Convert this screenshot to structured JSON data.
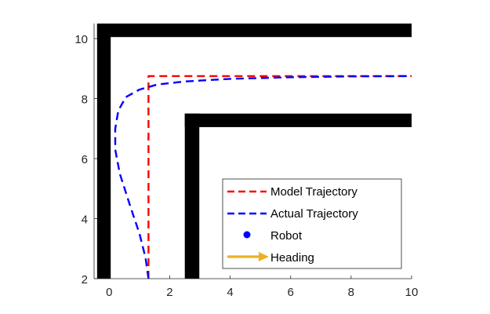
{
  "chart_data": {
    "type": "line",
    "xlim": [
      -0.5,
      10
    ],
    "ylim": [
      2,
      10.5
    ],
    "xticks": [
      0,
      2,
      4,
      6,
      8,
      10
    ],
    "yticks": [
      2,
      4,
      6,
      8,
      10
    ],
    "grid": false,
    "legend_position": "bottom-right",
    "walls": [
      {
        "name": "outer-wall-vertical",
        "x": [
          -0.4,
          0.05
        ],
        "y": [
          2,
          10.5
        ]
      },
      {
        "name": "outer-wall-horizontal",
        "x": [
          -0.4,
          10
        ],
        "y": [
          10.05,
          10.5
        ]
      },
      {
        "name": "inner-wall-vertical",
        "x": [
          2.5,
          2.98
        ],
        "y": [
          2,
          7.5
        ]
      },
      {
        "name": "inner-wall-horizontal",
        "x": [
          2.5,
          10
        ],
        "y": [
          7.05,
          7.5
        ]
      }
    ],
    "series": [
      {
        "name": "Model Trajectory",
        "color": "#ff0000",
        "style": "dashed",
        "x": [
          1.3,
          1.3,
          10
        ],
        "y": [
          2,
          8.75,
          8.75
        ]
      },
      {
        "name": "Actual Trajectory",
        "color": "#0000ff",
        "style": "dashed",
        "x": [
          1.3,
          1.2,
          1.0,
          0.7,
          0.35,
          0.2,
          0.2,
          0.3,
          0.55,
          1.0,
          1.6,
          2.5,
          4.0,
          6.0,
          8.0,
          10.0
        ],
        "y": [
          2.0,
          2.7,
          3.5,
          4.4,
          5.5,
          6.3,
          7.0,
          7.6,
          8.05,
          8.3,
          8.47,
          8.57,
          8.66,
          8.71,
          8.74,
          8.75
        ]
      }
    ],
    "legend": [
      {
        "label": "Model Trajectory",
        "marker": "dashed-line",
        "color": "#ff0000"
      },
      {
        "label": "Actual Trajectory",
        "marker": "dashed-line",
        "color": "#0000ff"
      },
      {
        "label": "Robot",
        "marker": "dot",
        "color": "#0000ff"
      },
      {
        "label": "Heading",
        "marker": "arrow",
        "color": "#edb120"
      }
    ]
  }
}
